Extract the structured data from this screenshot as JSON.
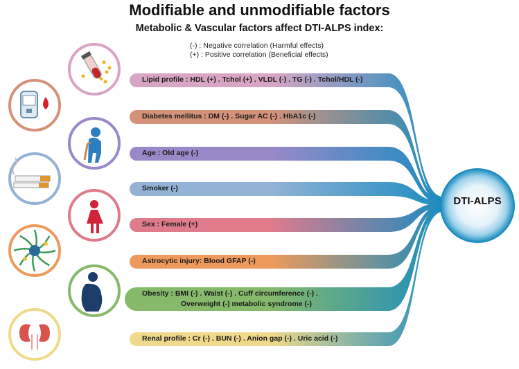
{
  "title": "Modifiable and unmodifiable factors",
  "subtitle": "Metabolic & Vascular factors affect DTI-ALPS index:",
  "legend": {
    "negative": "(-) : Negative correlation (Harmful effects)",
    "positive": "(+) : Positive correlation (Beneficial effects)"
  },
  "hub": {
    "label": "DTI-ALPS",
    "color": "#1b8cc0"
  },
  "factors": [
    {
      "label": "Lipid profile : HDL (+) . Tchol (+) . VLDL (-) . TG (-) . Tchol/HDL (-)",
      "color": "#d9a5c5",
      "icon": "blood-test-tube-icon"
    },
    {
      "label": "Diabetes mellitus : DM (-) . Sugar AC (-) . HbA1c (-)",
      "color": "#d4927a",
      "icon": "glucose-meter-icon"
    },
    {
      "label": "Age : Old age (-)",
      "color": "#9a89c9",
      "icon": "elderly-person-icon"
    },
    {
      "label": "Smoker (-)",
      "color": "#93b2d6",
      "icon": "cigarette-icon"
    },
    {
      "label": "Sex : Female (+)",
      "color": "#e07b8c",
      "icon": "female-icon"
    },
    {
      "label": "Astrocytic injury: Blood GFAP (-)",
      "color": "#ee9a5c",
      "icon": "astrocyte-icon"
    },
    {
      "label": "Obesity : BMI (-) . Waist (-) . Cuff circumference (-) .",
      "label2": "Overweight (-) metabolic syndrome (-)",
      "color": "#86b96a",
      "icon": "obese-person-icon"
    },
    {
      "label": "Renal profile : Cr (-) . BUN (-) . Anion gap (-) . Uric acid (-)",
      "color": "#efd98a",
      "icon": "kidney-icon"
    }
  ]
}
